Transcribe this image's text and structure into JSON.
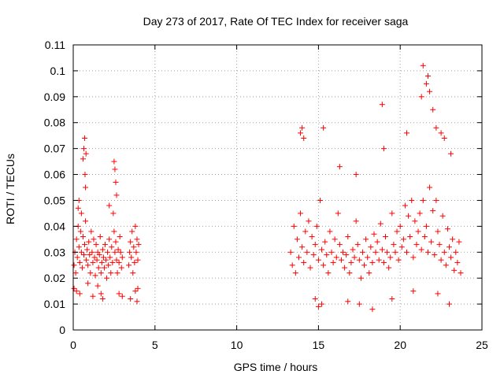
{
  "chart_data": {
    "type": "scatter",
    "title": "Day 273 of 2017, Rate Of TEC Index for receiver saga",
    "xlabel": "GPS time / hours",
    "ylabel": "ROTI / TECUs",
    "xlim": [
      0,
      25
    ],
    "ylim": [
      0,
      0.11
    ],
    "x_ticks": [
      "0",
      "5",
      "10",
      "15",
      "20",
      "25"
    ],
    "y_ticks": [
      "0",
      "0.01",
      "0.02",
      "0.03",
      "0.04",
      "0.05",
      "0.06",
      "0.07",
      "0.08",
      "0.09",
      "0.1",
      "0.11"
    ],
    "grid": true,
    "marker": "plus",
    "color": "#ff0000",
    "series": [
      {
        "x": [
          0.05,
          0.1,
          0.15,
          0.2,
          0.25,
          0.3,
          0.35,
          0.4,
          0.45,
          0.5,
          0.55,
          0.6,
          0.65,
          0.7,
          0.75,
          0.8,
          0.85,
          0.9,
          0.95,
          1.0,
          1.05,
          1.1,
          1.15,
          1.2,
          1.25,
          1.3,
          1.35,
          1.4,
          1.45,
          1.5,
          1.55,
          1.6,
          1.65,
          1.7,
          1.75,
          1.8,
          1.85,
          1.9,
          1.95,
          2.0,
          2.05,
          2.1,
          2.15,
          2.2,
          2.25,
          2.3,
          2.35,
          2.4,
          2.45,
          2.5,
          2.55,
          2.6,
          2.65,
          2.7,
          2.75,
          2.8,
          2.85,
          2.9,
          2.95,
          3.0,
          3.4,
          3.45,
          3.5,
          3.55,
          3.6,
          3.65,
          3.7,
          3.75,
          3.8,
          3.85,
          3.9,
          3.95,
          4.0,
          0.3,
          0.35,
          0.6,
          0.65,
          0.7,
          0.72,
          0.75,
          0.78,
          0.5,
          2.5,
          2.55,
          2.6,
          2.65,
          2.2,
          1.7,
          1.8,
          3.9,
          3.95,
          0.05,
          0.2,
          0.4,
          0.9,
          1.2,
          1.5,
          2.8,
          3.0,
          3.5,
          3.8
        ],
        "y": [
          0.025,
          0.03,
          0.022,
          0.035,
          0.028,
          0.04,
          0.032,
          0.026,
          0.038,
          0.03,
          0.024,
          0.036,
          0.029,
          0.033,
          0.042,
          0.027,
          0.031,
          0.025,
          0.034,
          0.029,
          0.022,
          0.038,
          0.03,
          0.026,
          0.035,
          0.028,
          0.021,
          0.033,
          0.027,
          0.03,
          0.024,
          0.029,
          0.036,
          0.022,
          0.026,
          0.031,
          0.028,
          0.024,
          0.033,
          0.027,
          0.02,
          0.03,
          0.025,
          0.035,
          0.028,
          0.022,
          0.032,
          0.026,
          0.045,
          0.038,
          0.03,
          0.034,
          0.027,
          0.022,
          0.031,
          0.026,
          0.036,
          0.03,
          0.024,
          0.028,
          0.025,
          0.03,
          0.034,
          0.028,
          0.038,
          0.022,
          0.032,
          0.026,
          0.04,
          0.03,
          0.035,
          0.027,
          0.033,
          0.047,
          0.05,
          0.066,
          0.07,
          0.074,
          0.06,
          0.055,
          0.068,
          0.045,
          0.065,
          0.062,
          0.057,
          0.052,
          0.048,
          0.014,
          0.012,
          0.011,
          0.016,
          0.016,
          0.015,
          0.014,
          0.018,
          0.013,
          0.017,
          0.014,
          0.013,
          0.012,
          0.015
        ]
      },
      {
        "x": [
          13.3,
          13.4,
          13.5,
          13.6,
          13.7,
          13.8,
          13.9,
          14.0,
          14.1,
          14.2,
          14.3,
          14.4,
          14.5,
          14.6,
          14.7,
          14.8,
          14.9,
          15.0,
          15.1,
          15.2,
          15.3,
          15.4,
          15.5,
          15.6,
          15.7,
          15.8,
          15.9,
          16.0,
          16.1,
          16.2,
          16.3,
          16.4,
          16.5,
          16.6,
          16.7,
          16.8,
          16.9,
          17.0,
          17.1,
          17.2,
          17.3,
          17.4,
          17.5,
          17.6,
          17.7,
          17.8,
          17.9,
          18.0,
          18.1,
          18.2,
          18.3,
          18.4,
          18.5,
          18.6,
          18.7,
          18.8,
          18.9,
          19.0,
          19.1,
          19.2,
          19.3,
          19.4,
          19.5,
          19.6,
          19.7,
          19.8,
          19.9,
          20.0,
          20.1,
          20.2,
          20.3,
          20.4,
          20.5,
          20.6,
          20.7,
          20.8,
          20.9,
          21.0,
          21.1,
          21.2,
          21.3,
          21.4,
          21.5,
          21.6,
          21.7,
          21.8,
          21.9,
          22.0,
          22.1,
          22.2,
          22.3,
          22.4,
          22.5,
          22.6,
          22.7,
          22.8,
          22.9,
          23.0,
          23.1,
          23.2,
          23.3,
          23.4,
          23.5,
          23.6,
          23.7,
          13.9,
          14.0,
          14.1,
          15.3,
          16.3,
          17.3,
          18.9,
          19.0,
          20.4,
          21.3,
          21.4,
          21.6,
          21.7,
          21.8,
          22.0,
          22.2,
          22.5,
          22.7,
          23.1,
          14.8,
          15.0,
          15.2,
          16.8,
          17.5,
          18.3,
          19.5,
          20.8,
          22.3,
          23.0
        ],
        "y": [
          0.03,
          0.025,
          0.04,
          0.022,
          0.035,
          0.028,
          0.045,
          0.032,
          0.026,
          0.038,
          0.03,
          0.042,
          0.024,
          0.036,
          0.029,
          0.033,
          0.04,
          0.027,
          0.05,
          0.031,
          0.025,
          0.034,
          0.029,
          0.022,
          0.038,
          0.03,
          0.026,
          0.035,
          0.028,
          0.045,
          0.033,
          0.027,
          0.03,
          0.024,
          0.029,
          0.036,
          0.022,
          0.026,
          0.031,
          0.028,
          0.042,
          0.033,
          0.027,
          0.02,
          0.03,
          0.025,
          0.035,
          0.028,
          0.022,
          0.032,
          0.026,
          0.037,
          0.03,
          0.034,
          0.027,
          0.041,
          0.031,
          0.026,
          0.036,
          0.03,
          0.024,
          0.028,
          0.045,
          0.033,
          0.03,
          0.038,
          0.027,
          0.04,
          0.032,
          0.035,
          0.048,
          0.03,
          0.044,
          0.036,
          0.05,
          0.028,
          0.042,
          0.033,
          0.038,
          0.045,
          0.031,
          0.05,
          0.036,
          0.04,
          0.03,
          0.055,
          0.034,
          0.046,
          0.029,
          0.05,
          0.038,
          0.033,
          0.027,
          0.044,
          0.03,
          0.025,
          0.039,
          0.032,
          0.028,
          0.035,
          0.023,
          0.03,
          0.026,
          0.034,
          0.022,
          0.076,
          0.078,
          0.074,
          0.078,
          0.063,
          0.06,
          0.087,
          0.07,
          0.076,
          0.09,
          0.102,
          0.095,
          0.098,
          0.092,
          0.085,
          0.078,
          0.076,
          0.074,
          0.068,
          0.012,
          0.009,
          0.01,
          0.011,
          0.01,
          0.008,
          0.012,
          0.015,
          0.014,
          0.01
        ]
      }
    ]
  }
}
